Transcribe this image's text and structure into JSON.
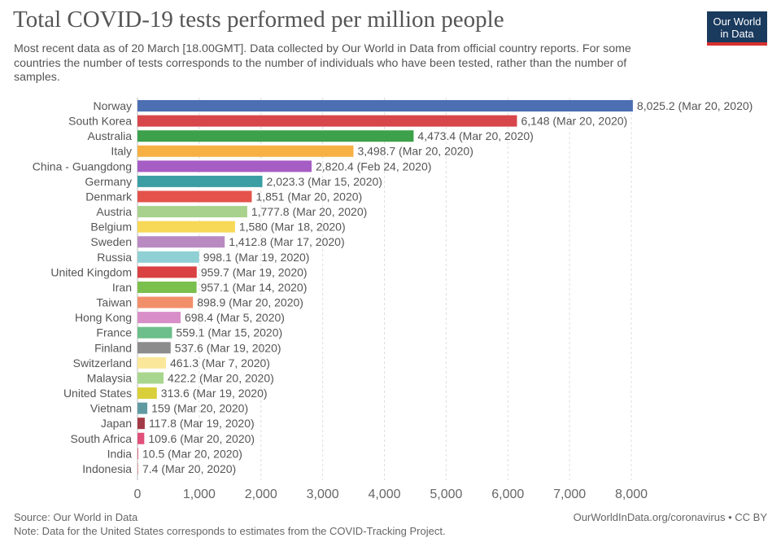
{
  "title": "Total COVID-19 tests performed per million people",
  "subtitle": "Most recent data as of 20 March [18.00GMT]. Data collected by Our World in Data from official country reports. For some countries the number of tests corresponds to the number of individuals who have been tested, rather than the number of samples.",
  "logo": {
    "line1": "Our World",
    "line2": "in Data"
  },
  "footer": {
    "source": "Source: Our World in Data",
    "note": "Note: Data for the United States corresponds to estimates from the COVID-Tracking Project.",
    "link": "OurWorldInData.org/coronavirus • CC BY"
  },
  "chart_data": {
    "type": "bar",
    "orientation": "horizontal",
    "title": "Total COVID-19 tests performed per million people",
    "xlim": [
      0,
      8000
    ],
    "ticks": [
      "0",
      "1,000",
      "2,000",
      "3,000",
      "4,000",
      "5,000",
      "6,000",
      "7,000",
      "8,000"
    ],
    "tick_values": [
      0,
      1000,
      2000,
      3000,
      4000,
      5000,
      6000,
      7000,
      8000
    ],
    "grid": "vertical dashed",
    "categories": [
      "Norway",
      "South Korea",
      "Australia",
      "Italy",
      "China - Guangdong",
      "Germany",
      "Denmark",
      "Austria",
      "Belgium",
      "Sweden",
      "Russia",
      "United Kingdom",
      "Iran",
      "Taiwan",
      "Hong Kong",
      "France",
      "Finland",
      "Switzerland",
      "Malaysia",
      "United States",
      "Vietnam",
      "Japan",
      "South Africa",
      "India",
      "Indonesia"
    ],
    "values": [
      8025.2,
      6148,
      4473.4,
      3498.7,
      2820.4,
      2023.3,
      1851,
      1777.8,
      1580,
      1412.8,
      998.1,
      959.7,
      957.1,
      898.9,
      698.4,
      559.1,
      537.6,
      461.3,
      422.2,
      313.6,
      159,
      117.8,
      109.6,
      10.5,
      7.4
    ],
    "labels": [
      "8,025.2 (Mar 20, 2020)",
      "6,148 (Mar 20, 2020)",
      "4,473.4 (Mar 20, 2020)",
      "3,498.7 (Mar 20, 2020)",
      "2,820.4 (Feb 24, 2020)",
      "2,023.3 (Mar 15, 2020)",
      "1,851 (Mar 20, 2020)",
      "1,777.8 (Mar 20, 2020)",
      "1,580 (Mar 18, 2020)",
      "1,412.8 (Mar 17, 2020)",
      "998.1 (Mar 19, 2020)",
      "959.7 (Mar 19, 2020)",
      "957.1 (Mar 14, 2020)",
      "898.9 (Mar 20, 2020)",
      "698.4 (Mar 5, 2020)",
      "559.1 (Mar 15, 2020)",
      "537.6 (Mar 19, 2020)",
      "461.3 (Mar 7, 2020)",
      "422.2 (Mar 20, 2020)",
      "313.6 (Mar 19, 2020)",
      "159 (Mar 20, 2020)",
      "117.8 (Mar 19, 2020)",
      "109.6 (Mar 20, 2020)",
      "10.5 (Mar 20, 2020)",
      "7.4 (Mar 20, 2020)"
    ],
    "colors": [
      "#4c6fb3",
      "#d6464a",
      "#3ca14a",
      "#f6b043",
      "#a65dc4",
      "#3a9ea3",
      "#e3534c",
      "#a8d18d",
      "#f7d857",
      "#b98ac2",
      "#8fd0d4",
      "#d94142",
      "#7bbf4d",
      "#f28f6b",
      "#d88fc8",
      "#6cbf8a",
      "#8c8c8c",
      "#fbe79a",
      "#a9d68e",
      "#d9cf3a",
      "#5f9aa1",
      "#a33a47",
      "#e0507a",
      "#e06f80",
      "#e0a0a0"
    ]
  }
}
